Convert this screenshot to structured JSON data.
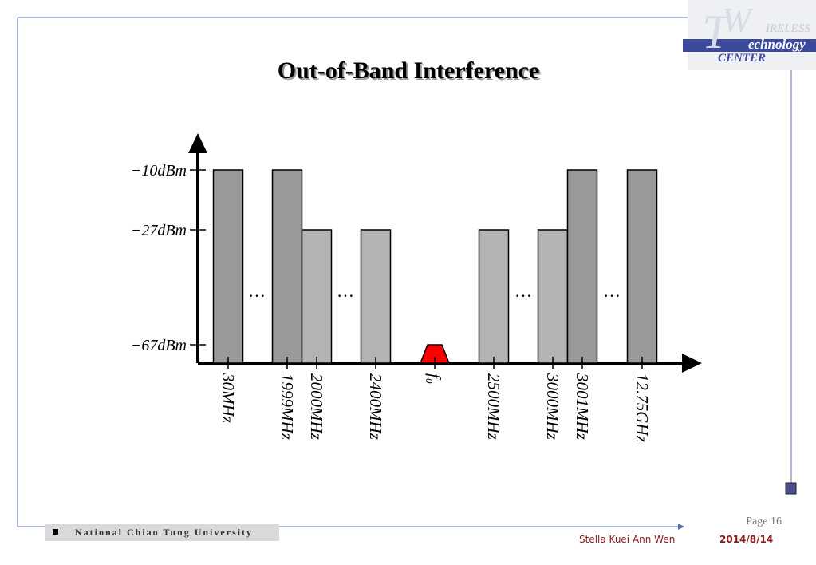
{
  "slide": {
    "title": "Out-of-Band Interference",
    "logo": {
      "t": "T",
      "w": "W",
      "line1": "IRELESS",
      "line2": "echnology",
      "line3": "CENTER"
    },
    "footer": {
      "university": "National Chiao Tung University",
      "page": "Page 16",
      "author": "Stella Kuei Ann Wen",
      "date": "2014/8/14"
    }
  },
  "chart_data": {
    "type": "bar",
    "categories": [
      "30MHz",
      "1999MHz",
      "2000MHz",
      "2400MHz",
      "f₀",
      "2500MHz",
      "3000MHz",
      "3001MHz",
      "12.75GHz"
    ],
    "values": [
      -10,
      -10,
      -27,
      -27,
      -67,
      -27,
      -27,
      -10,
      -10
    ],
    "colors": [
      "#999999",
      "#999999",
      "#b3b3b3",
      "#b3b3b3",
      "#ff0000",
      "#b3b3b3",
      "#b3b3b3",
      "#999999",
      "#999999"
    ],
    "yticks": [
      {
        "value": -10,
        "label": "−10dBm"
      },
      {
        "value": -27,
        "label": "−27dBm"
      },
      {
        "value": -67,
        "label": "−67dBm"
      }
    ],
    "annotations": [
      "…",
      "…",
      "…",
      "…"
    ]
  }
}
